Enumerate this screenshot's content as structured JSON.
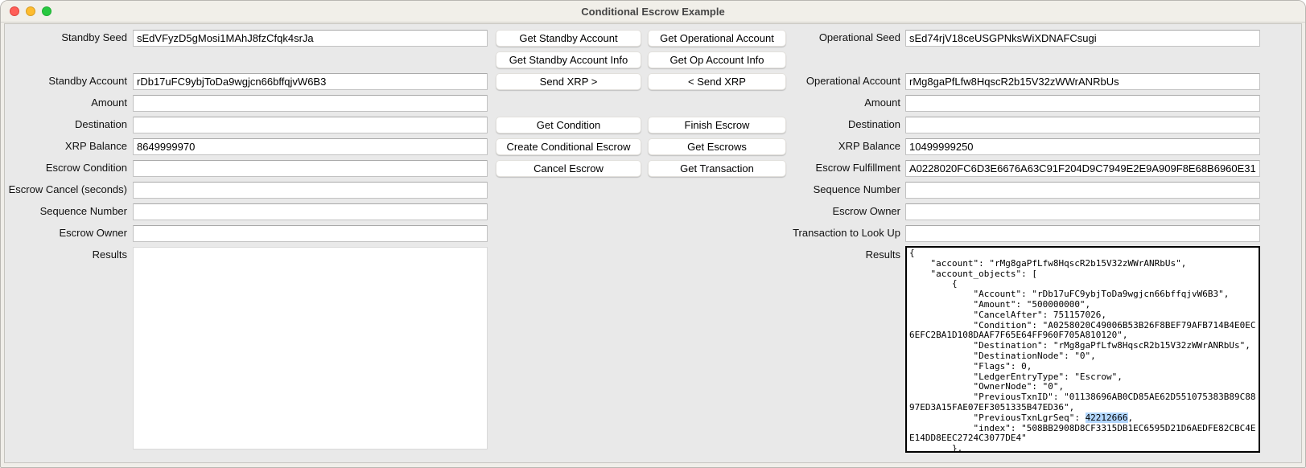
{
  "window": {
    "title": "Conditional Escrow Example"
  },
  "standby": {
    "seed_label": "Standby Seed",
    "seed_value": "sEdVFyzD5gMosi1MAhJ8fzCfqk4srJa",
    "account_label": "Standby Account",
    "account_value": "rDb17uFC9ybjToDa9wgjcn66bffqjvW6B3",
    "amount_label": "Amount",
    "amount_value": "",
    "destination_label": "Destination",
    "destination_value": "",
    "balance_label": "XRP Balance",
    "balance_value": "8649999970",
    "condition_label": "Escrow Condition",
    "condition_value": "",
    "cancel_label": "Escrow Cancel (seconds)",
    "cancel_value": "",
    "sequence_label": "Sequence Number",
    "sequence_value": "",
    "owner_label": "Escrow Owner",
    "owner_value": "",
    "results_label": "Results",
    "results_value": ""
  },
  "operational": {
    "seed_label": "Operational Seed",
    "seed_value": "sEd74rjV18ceUSGPNksWiXDNAFCsugi",
    "account_label": "Operational Account",
    "account_value": "rMg8gaPfLfw8HqscR2b15V32zWWrANRbUs",
    "amount_label": "Amount",
    "amount_value": "",
    "destination_label": "Destination",
    "destination_value": "",
    "balance_label": "XRP Balance",
    "balance_value": "10499999250",
    "fulfillment_label": "Escrow Fulfillment",
    "fulfillment_value": "A0228020FC6D3E6676A63C91F204D9C7949E2E9A909F8E68B6960E31",
    "sequence_label": "Sequence Number",
    "sequence_value": "",
    "owner_label": "Escrow Owner",
    "owner_value": "",
    "lookup_label": "Transaction to Look Up",
    "lookup_value": "",
    "results_label": "Results",
    "results_lines": [
      "{",
      "    \"account\": \"rMg8gaPfLfw8HqscR2b15V32zWWrANRbUs\",",
      "    \"account_objects\": [",
      "        {",
      "            \"Account\": \"rDb17uFC9ybjToDa9wgjcn66bffqjvW6B3\",",
      "            \"Amount\": \"500000000\",",
      "            \"CancelAfter\": 751157026,",
      "            \"Condition\": \"A0258020C49006B53B26F8BEF79AFB714B4E0EC6EFC2BA1D108DAAF7F65E64FF960F705A810120\",",
      "            \"Destination\": \"rMg8gaPfLfw8HqscR2b15V32zWWrANRbUs\",",
      "            \"DestinationNode\": \"0\",",
      "            \"Flags\": 0,",
      "            \"LedgerEntryType\": \"Escrow\",",
      "            \"OwnerNode\": \"0\",",
      "            \"PreviousTxnID\": \"01138696AB0CD85AE62D551075383B89C8897ED3A15FAE07EF3051335B47ED36\",",
      "            \"PreviousTxnLgrSeq\": 42212666,",
      "            \"index\": \"508BB2908D8CF3315DB1EC6595D21D6AEDFE82CBC4EE14DD8EEC2724C3077DE4\"",
      "        },"
    ],
    "results_selection": "42212666",
    "selection_color": "#b3d7ff"
  },
  "buttons": {
    "get_standby_account": "Get Standby Account",
    "get_operational_account": "Get Operational Account",
    "get_standby_account_info": "Get Standby Account Info",
    "get_op_account_info": "Get Op Account Info",
    "send_xrp_right": "Send XRP >",
    "send_xrp_left": "< Send XRP",
    "get_condition": "Get Condition",
    "finish_escrow": "Finish Escrow",
    "create_conditional_escrow": "Create Conditional Escrow",
    "get_escrows": "Get Escrows",
    "cancel_escrow": "Cancel Escrow",
    "get_transaction": "Get Transaction"
  }
}
